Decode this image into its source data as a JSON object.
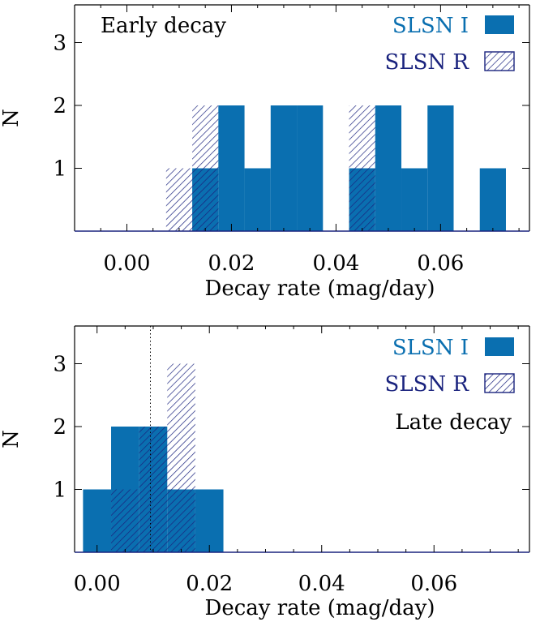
{
  "chart_data": [
    {
      "type": "bar",
      "annotation": "Early decay",
      "xlabel": "Decay rate (mag/day)",
      "ylabel": "N",
      "xlim": [
        -0.01,
        0.077
      ],
      "ylim": [
        0,
        3.6
      ],
      "xticks": [
        "0.00",
        "0.02",
        "0.04",
        "0.06"
      ],
      "yticks": [
        "1",
        "2",
        "3"
      ],
      "bin_width": 0.005,
      "series": [
        {
          "name": "SLSN I",
          "color": "#0a6fb0",
          "pattern": "solid",
          "bins": [
            {
              "x0": 0.0125,
              "count": 1
            },
            {
              "x0": 0.0175,
              "count": 2
            },
            {
              "x0": 0.0225,
              "count": 1
            },
            {
              "x0": 0.0275,
              "count": 2
            },
            {
              "x0": 0.0325,
              "count": 2
            },
            {
              "x0": 0.0425,
              "count": 1
            },
            {
              "x0": 0.0475,
              "count": 2
            },
            {
              "x0": 0.0525,
              "count": 1
            },
            {
              "x0": 0.0575,
              "count": 2
            },
            {
              "x0": 0.0675,
              "count": 1
            }
          ]
        },
        {
          "name": "SLSN R",
          "color": "#1a237e",
          "pattern": "hatched",
          "bins": [
            {
              "x0": 0.0075,
              "count": 1
            },
            {
              "x0": 0.0125,
              "count": 2
            },
            {
              "x0": 0.0425,
              "count": 2
            }
          ]
        }
      ],
      "legend_position": "top-right",
      "grid": false
    },
    {
      "type": "bar",
      "annotation": "Late decay",
      "xlabel": "Decay rate (mag/day)",
      "ylabel": "N",
      "xlim": [
        -0.004,
        0.077
      ],
      "ylim": [
        0,
        3.6
      ],
      "xticks": [
        "0.00",
        "0.02",
        "0.04",
        "0.06"
      ],
      "yticks": [
        "1",
        "2",
        "3"
      ],
      "bin_width": 0.005,
      "reference_line_x": 0.0095,
      "series": [
        {
          "name": "SLSN I",
          "color": "#0a6fb0",
          "pattern": "solid",
          "bins": [
            {
              "x0": -0.0025,
              "count": 1
            },
            {
              "x0": 0.0025,
              "count": 2
            },
            {
              "x0": 0.0075,
              "count": 2
            },
            {
              "x0": 0.0125,
              "count": 1
            },
            {
              "x0": 0.0175,
              "count": 1
            }
          ]
        },
        {
          "name": "SLSN R",
          "color": "#1a237e",
          "pattern": "hatched",
          "bins": [
            {
              "x0": 0.0025,
              "count": 1
            },
            {
              "x0": 0.0075,
              "count": 2
            },
            {
              "x0": 0.0125,
              "count": 3
            }
          ]
        }
      ],
      "legend_position": "top-right",
      "grid": false
    }
  ]
}
